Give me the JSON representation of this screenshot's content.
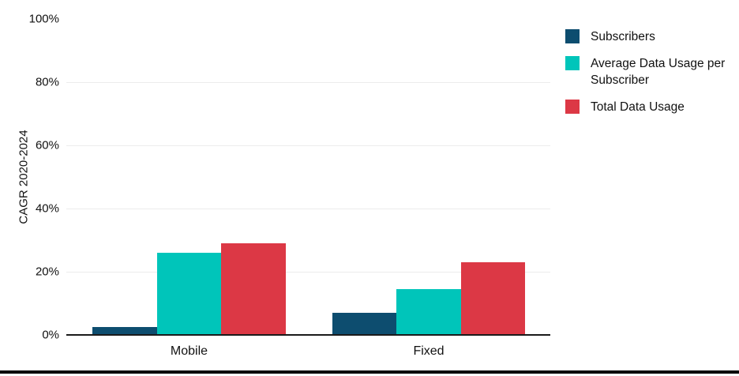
{
  "chart_data": {
    "type": "bar",
    "title": "",
    "xlabel": "",
    "ylabel": "CAGR 2020-2024",
    "categories": [
      "Mobile",
      "Fixed"
    ],
    "series": [
      {
        "name": "Subscribers",
        "color": "#0D4D6F",
        "values": [
          2.5,
          7
        ]
      },
      {
        "name": "Average Data Usage per Subscriber",
        "color": "#00C5BA",
        "values": [
          26,
          14.5
        ]
      },
      {
        "name": "Total Data Usage",
        "color": "#DC3845",
        "values": [
          29,
          23
        ]
      }
    ],
    "ylim": [
      0,
      100
    ],
    "yticks_pct": [
      0,
      20,
      40,
      60,
      80,
      100
    ],
    "ytick_labels": [
      "0%",
      "20%",
      "40%",
      "60%",
      "80%",
      "100%"
    ],
    "grid": "horizontal lines at 20-80%, none at 100%",
    "legend_position": "right"
  },
  "colors": {
    "axis_line": "#1a1a1a",
    "gridline": "#ececec",
    "text": "#111111",
    "bottom_rule": "#000000",
    "background": "#ffffff"
  }
}
